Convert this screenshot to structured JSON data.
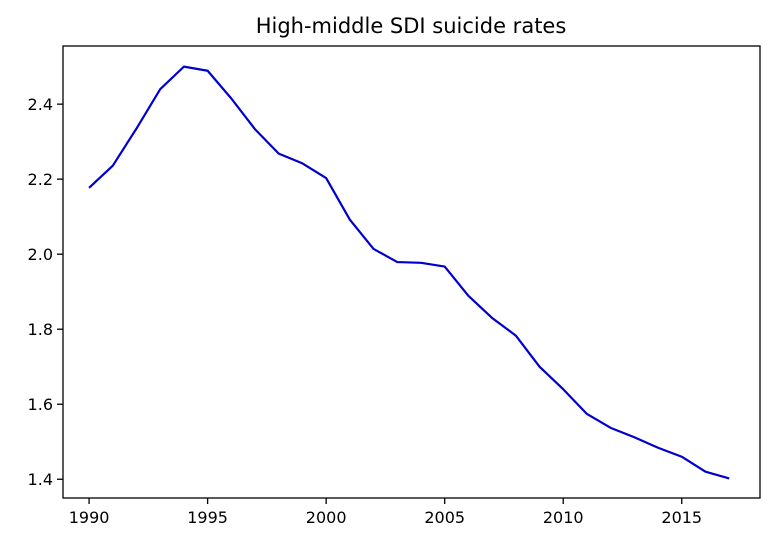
{
  "chart_data": {
    "type": "line",
    "title": "High-middle SDI suicide rates",
    "xlabel": "",
    "ylabel": "",
    "xlim": [
      1988.9,
      2018.3
    ],
    "ylim": [
      1.35,
      2.555
    ],
    "x_ticks": [
      1990,
      1995,
      2000,
      2005,
      2010,
      2015
    ],
    "x_tick_labels": [
      "1990",
      "1995",
      "2000",
      "2005",
      "2010",
      "2015"
    ],
    "y_ticks": [
      1.4,
      1.6,
      1.8,
      2.0,
      2.2,
      2.4
    ],
    "y_tick_labels": [
      "1.4",
      "1.6",
      "1.8",
      "2.0",
      "2.2",
      "2.4"
    ],
    "grid": false,
    "legend": "none",
    "series": [
      {
        "color": "#0000cc",
        "x": [
          1990,
          1991,
          1992,
          1993,
          1994,
          1995,
          1996,
          1997,
          1998,
          1999,
          2000,
          2001,
          2002,
          2003,
          2004,
          2005,
          2006,
          2007,
          2008,
          2009,
          2010,
          2011,
          2012,
          2013,
          2014,
          2015,
          2016,
          2017
        ],
        "values": [
          2.177,
          2.236,
          2.335,
          2.44,
          2.5,
          2.489,
          2.415,
          2.333,
          2.268,
          2.242,
          2.203,
          2.092,
          2.014,
          1.979,
          1.977,
          1.967,
          1.889,
          1.83,
          1.783,
          1.7,
          1.64,
          1.574,
          1.537,
          1.512,
          1.484,
          1.46,
          1.42,
          1.402
        ]
      }
    ]
  }
}
